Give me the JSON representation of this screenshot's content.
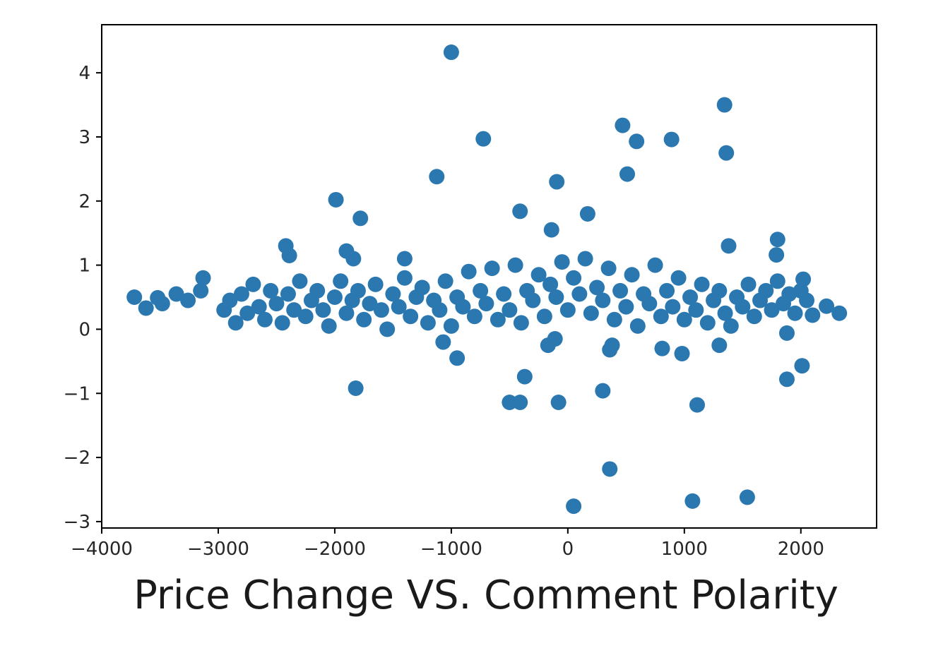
{
  "chart_data": {
    "type": "scatter",
    "title": "",
    "xlabel": "Price Change VS. Comment Polarity",
    "ylabel": "",
    "xlim": [
      -4000,
      2650
    ],
    "ylim": [
      -3.1,
      4.75
    ],
    "x_ticks": [
      -4000,
      -3000,
      -2000,
      -1000,
      0,
      1000,
      2000
    ],
    "x_tick_labels": [
      "−4000",
      "−3000",
      "−2000",
      "−1000",
      "0",
      "1000",
      "2000"
    ],
    "y_ticks": [
      -3,
      -2,
      -1,
      0,
      1,
      2,
      3,
      4
    ],
    "y_tick_labels": [
      "−3",
      "−2",
      "−1",
      "0",
      "1",
      "2",
      "3",
      "4"
    ],
    "grid": false,
    "legend": "none",
    "series": [
      {
        "color": "#2b78b1",
        "points": [
          [
            -1000,
            4.32
          ],
          [
            1345,
            3.5
          ],
          [
            470,
            3.18
          ],
          [
            -725,
            2.97
          ],
          [
            590,
            2.93
          ],
          [
            890,
            2.96
          ],
          [
            1360,
            2.75
          ],
          [
            -1125,
            2.38
          ],
          [
            510,
            2.42
          ],
          [
            -95,
            2.3
          ],
          [
            -1990,
            2.02
          ],
          [
            -1780,
            1.73
          ],
          [
            -410,
            1.84
          ],
          [
            170,
            1.8
          ],
          [
            -140,
            1.55
          ],
          [
            1800,
            1.4
          ],
          [
            1380,
            1.3
          ],
          [
            -2420,
            1.3
          ],
          [
            -2390,
            1.15
          ],
          [
            -1900,
            1.22
          ],
          [
            -1840,
            1.1
          ],
          [
            1790,
            1.16
          ],
          [
            -1400,
            1.1
          ],
          [
            -3130,
            0.8
          ],
          [
            -3150,
            0.6
          ],
          [
            -3720,
            0.5
          ],
          [
            -3620,
            0.33
          ],
          [
            -3520,
            0.49
          ],
          [
            -3480,
            0.4
          ],
          [
            -3360,
            0.55
          ],
          [
            -3260,
            0.45
          ],
          [
            2330,
            0.25
          ],
          [
            2220,
            0.36
          ],
          [
            2100,
            0.22
          ],
          [
            2020,
            0.78
          ],
          [
            -1820,
            -0.92
          ],
          [
            -950,
            -0.45
          ],
          [
            -370,
            -0.74
          ],
          [
            -500,
            -1.14
          ],
          [
            -410,
            -1.14
          ],
          [
            -80,
            -1.14
          ],
          [
            300,
            -0.96
          ],
          [
            380,
            -0.25
          ],
          [
            360,
            -0.32
          ],
          [
            980,
            -0.38
          ],
          [
            810,
            -0.3
          ],
          [
            1110,
            -1.18
          ],
          [
            1300,
            -0.25
          ],
          [
            1880,
            -0.78
          ],
          [
            2010,
            -0.57
          ],
          [
            1880,
            -0.06
          ],
          [
            -1070,
            -0.2
          ],
          [
            -170,
            -0.25
          ],
          [
            -110,
            -0.15
          ],
          [
            360,
            -2.18
          ],
          [
            50,
            -2.76
          ],
          [
            1070,
            -2.68
          ],
          [
            1540,
            -2.62
          ],
          [
            -2950,
            0.3
          ],
          [
            -2900,
            0.45
          ],
          [
            -2850,
            0.1
          ],
          [
            -2800,
            0.55
          ],
          [
            -2750,
            0.25
          ],
          [
            -2700,
            0.7
          ],
          [
            -2650,
            0.35
          ],
          [
            -2600,
            0.15
          ],
          [
            -2550,
            0.6
          ],
          [
            -2500,
            0.4
          ],
          [
            -2450,
            0.1
          ],
          [
            -2400,
            0.55
          ],
          [
            -2350,
            0.3
          ],
          [
            -2300,
            0.75
          ],
          [
            -2250,
            0.2
          ],
          [
            -2200,
            0.45
          ],
          [
            -2150,
            0.6
          ],
          [
            -2100,
            0.3
          ],
          [
            -2050,
            0.05
          ],
          [
            -2000,
            0.5
          ],
          [
            -1950,
            0.75
          ],
          [
            -1900,
            0.25
          ],
          [
            -1850,
            0.45
          ],
          [
            -1800,
            0.6
          ],
          [
            -1750,
            0.15
          ],
          [
            -1700,
            0.4
          ],
          [
            -1650,
            0.7
          ],
          [
            -1600,
            0.3
          ],
          [
            -1550,
            0.0
          ],
          [
            -1500,
            0.55
          ],
          [
            -1450,
            0.35
          ],
          [
            -1400,
            0.8
          ],
          [
            -1350,
            0.2
          ],
          [
            -1300,
            0.5
          ],
          [
            -1250,
            0.65
          ],
          [
            -1200,
            0.1
          ],
          [
            -1150,
            0.45
          ],
          [
            -1100,
            0.3
          ],
          [
            -1050,
            0.75
          ],
          [
            -1000,
            0.05
          ],
          [
            -950,
            0.5
          ],
          [
            -900,
            0.35
          ],
          [
            -850,
            0.9
          ],
          [
            -800,
            0.2
          ],
          [
            -750,
            0.6
          ],
          [
            -700,
            0.4
          ],
          [
            -650,
            0.95
          ],
          [
            -600,
            0.15
          ],
          [
            -550,
            0.55
          ],
          [
            -500,
            0.3
          ],
          [
            -450,
            1.0
          ],
          [
            -400,
            0.1
          ],
          [
            -350,
            0.6
          ],
          [
            -300,
            0.45
          ],
          [
            -250,
            0.85
          ],
          [
            -200,
            0.2
          ],
          [
            -150,
            0.7
          ],
          [
            -100,
            0.5
          ],
          [
            -50,
            1.05
          ],
          [
            0,
            0.3
          ],
          [
            50,
            0.8
          ],
          [
            100,
            0.55
          ],
          [
            150,
            1.1
          ],
          [
            200,
            0.25
          ],
          [
            250,
            0.65
          ],
          [
            300,
            0.45
          ],
          [
            350,
            0.95
          ],
          [
            400,
            0.15
          ],
          [
            450,
            0.6
          ],
          [
            500,
            0.35
          ],
          [
            550,
            0.85
          ],
          [
            600,
            0.05
          ],
          [
            650,
            0.55
          ],
          [
            700,
            0.4
          ],
          [
            750,
            1.0
          ],
          [
            800,
            0.2
          ],
          [
            850,
            0.6
          ],
          [
            900,
            0.35
          ],
          [
            950,
            0.8
          ],
          [
            1000,
            0.15
          ],
          [
            1050,
            0.5
          ],
          [
            1100,
            0.3
          ],
          [
            1150,
            0.7
          ],
          [
            1200,
            0.1
          ],
          [
            1250,
            0.45
          ],
          [
            1300,
            0.6
          ],
          [
            1350,
            0.25
          ],
          [
            1400,
            0.05
          ],
          [
            1450,
            0.5
          ],
          [
            1500,
            0.35
          ],
          [
            1550,
            0.7
          ],
          [
            1600,
            0.2
          ],
          [
            1650,
            0.45
          ],
          [
            1700,
            0.6
          ],
          [
            1750,
            0.3
          ],
          [
            1800,
            0.75
          ],
          [
            1850,
            0.4
          ],
          [
            1900,
            0.55
          ],
          [
            1950,
            0.25
          ],
          [
            2000,
            0.6
          ],
          [
            2050,
            0.45
          ]
        ]
      }
    ]
  }
}
